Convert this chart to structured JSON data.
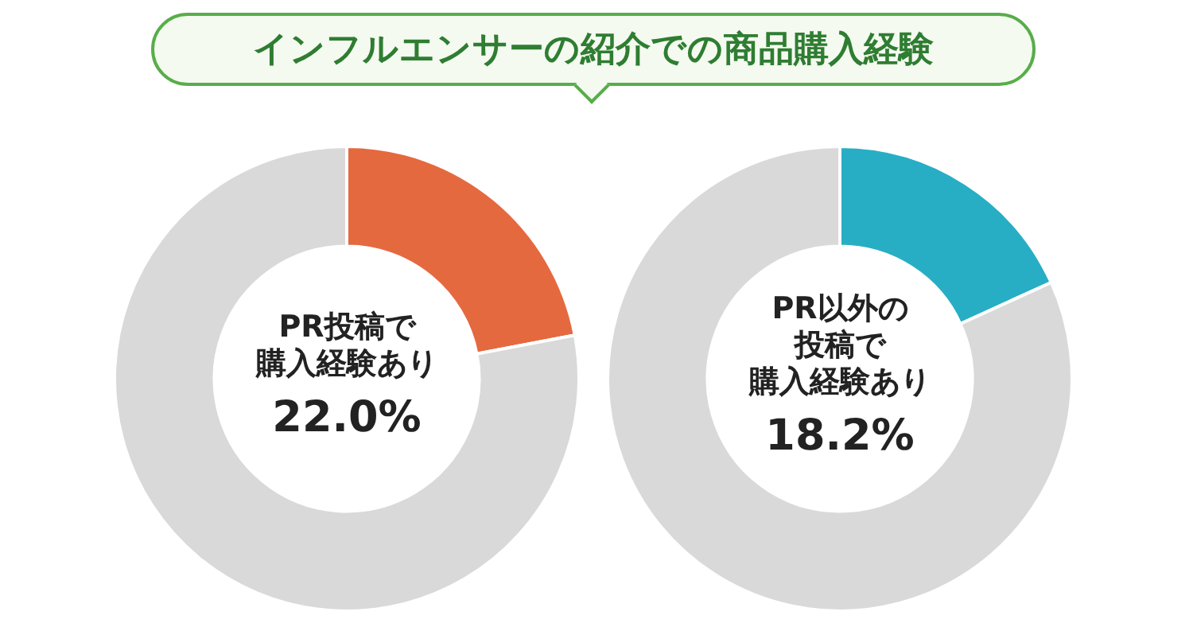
{
  "chart_data": [
    {
      "type": "donut",
      "title": "インフルエンサーの紹介での商品購入経験",
      "categories": [
        "PR投稿で購入経験あり",
        null
      ],
      "values": [
        22.0,
        78.0
      ],
      "colors": [
        "#e5693f",
        "#d9d9d9"
      ],
      "value_labels": [
        "22.0%",
        null
      ],
      "legend": false
    },
    {
      "type": "donut",
      "categories": [
        "PR以外の投稿で購入経験あり",
        null
      ],
      "values": [
        18.2,
        81.8
      ],
      "colors": [
        "#27aec5",
        "#d9d9d9"
      ],
      "value_labels": [
        "18.2%",
        null
      ],
      "legend": false
    }
  ]
}
